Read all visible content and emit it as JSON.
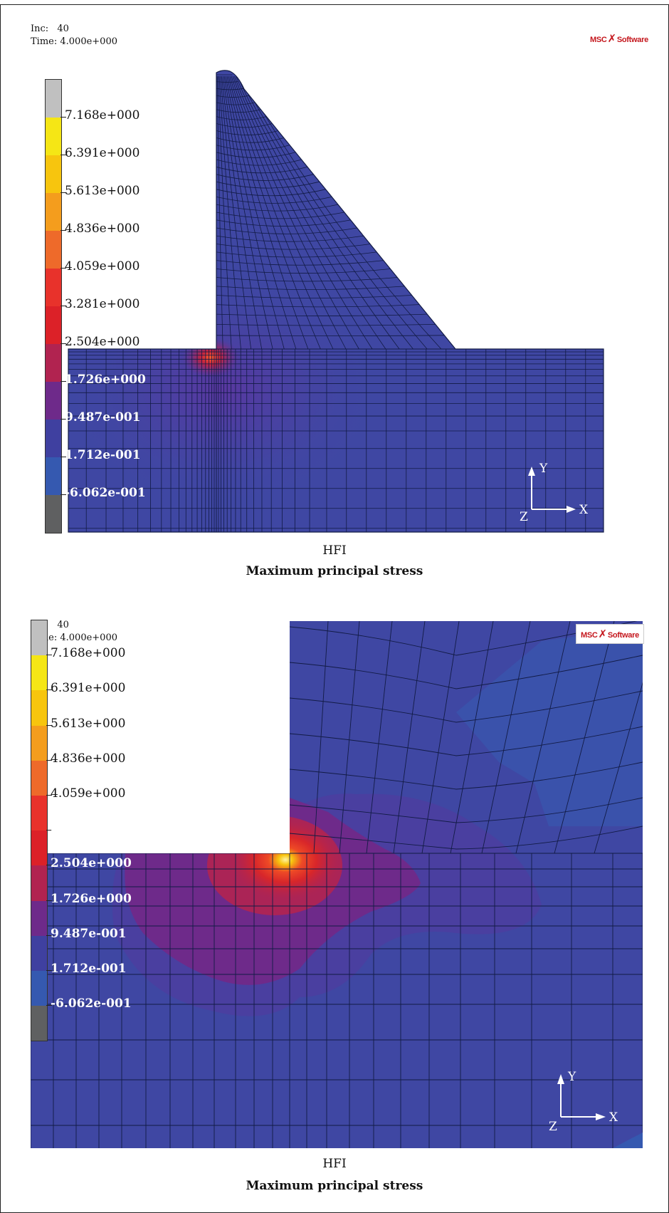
{
  "increment": {
    "label": "Inc:",
    "value": "40"
  },
  "time": {
    "label": "Time:",
    "value": "4.000e+000"
  },
  "logo": {
    "left": "MSC",
    "right": "Software"
  },
  "legend": {
    "values": [
      "7.168e+000",
      "6.391e+000",
      "5.613e+000",
      "4.836e+000",
      "4.059e+000",
      "3.281e+000",
      "2.504e+000",
      "1.726e+000",
      "9.487e-001",
      "1.712e-001",
      "-6.062e-001"
    ],
    "colors": [
      "#c0c0c0",
      "#f5e615",
      "#f7c50e",
      "#f49d1d",
      "#ee6a2a",
      "#e8322b",
      "#dc2128",
      "#b12350",
      "#6e2a8a",
      "#3f40a0",
      "#3559b0",
      "#5f6061"
    ]
  },
  "axes": {
    "x": "X",
    "y": "Y",
    "z": "Z"
  },
  "colors": {
    "mesh_blue": "#3f47a3",
    "mesh_line": "#111a44",
    "purple": "#6b2b8e",
    "hot_red": "#e5302b",
    "hot_yellow": "#ffe27a"
  },
  "panels": [
    {
      "caption_model": "HFI",
      "caption_title": "Maximum principal stress"
    },
    {
      "caption_model": "HFI",
      "caption_title": "Maximum principal stress"
    }
  ]
}
